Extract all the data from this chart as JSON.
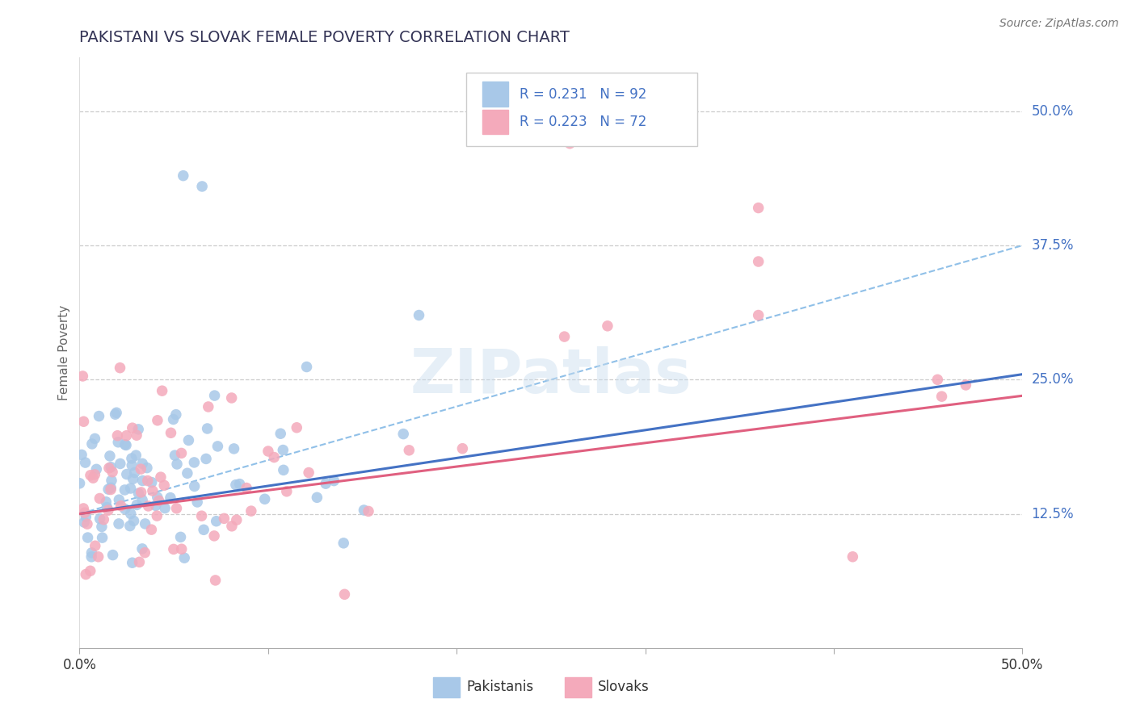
{
  "title": "PAKISTANI VS SLOVAK FEMALE POVERTY CORRELATION CHART",
  "source": "Source: ZipAtlas.com",
  "ylabel": "Female Poverty",
  "xlim": [
    0.0,
    0.5
  ],
  "ylim": [
    0.0,
    0.55
  ],
  "ytick_positions": [
    0.125,
    0.25,
    0.375,
    0.5
  ],
  "ytick_labels": [
    "12.5%",
    "25.0%",
    "37.5%",
    "50.0%"
  ],
  "pakistani_R": 0.231,
  "pakistani_N": 92,
  "slovak_R": 0.223,
  "slovak_N": 72,
  "dot_color_pakistani": "#A8C8E8",
  "dot_color_slovak": "#F4AABB",
  "line_color_pakistani": "#4472C4",
  "line_color_slovak": "#E06080",
  "line_color_dashed": "#90C0E8",
  "background_color": "#FFFFFF",
  "grid_color": "#CCCCCC",
  "title_color": "#333355",
  "watermark": "ZIPatlas",
  "legend_label_pakistani": "Pakistanis",
  "legend_label_slovak": "Slovaks",
  "pak_line_x0": 0.0,
  "pak_line_y0": 0.125,
  "pak_line_x1": 0.5,
  "pak_line_y1": 0.255,
  "slo_line_x0": 0.0,
  "slo_line_y0": 0.125,
  "slo_line_x1": 0.5,
  "slo_line_y1": 0.235,
  "dash_line_x0": 0.0,
  "dash_line_y0": 0.125,
  "dash_line_x1": 0.5,
  "dash_line_y1": 0.375
}
